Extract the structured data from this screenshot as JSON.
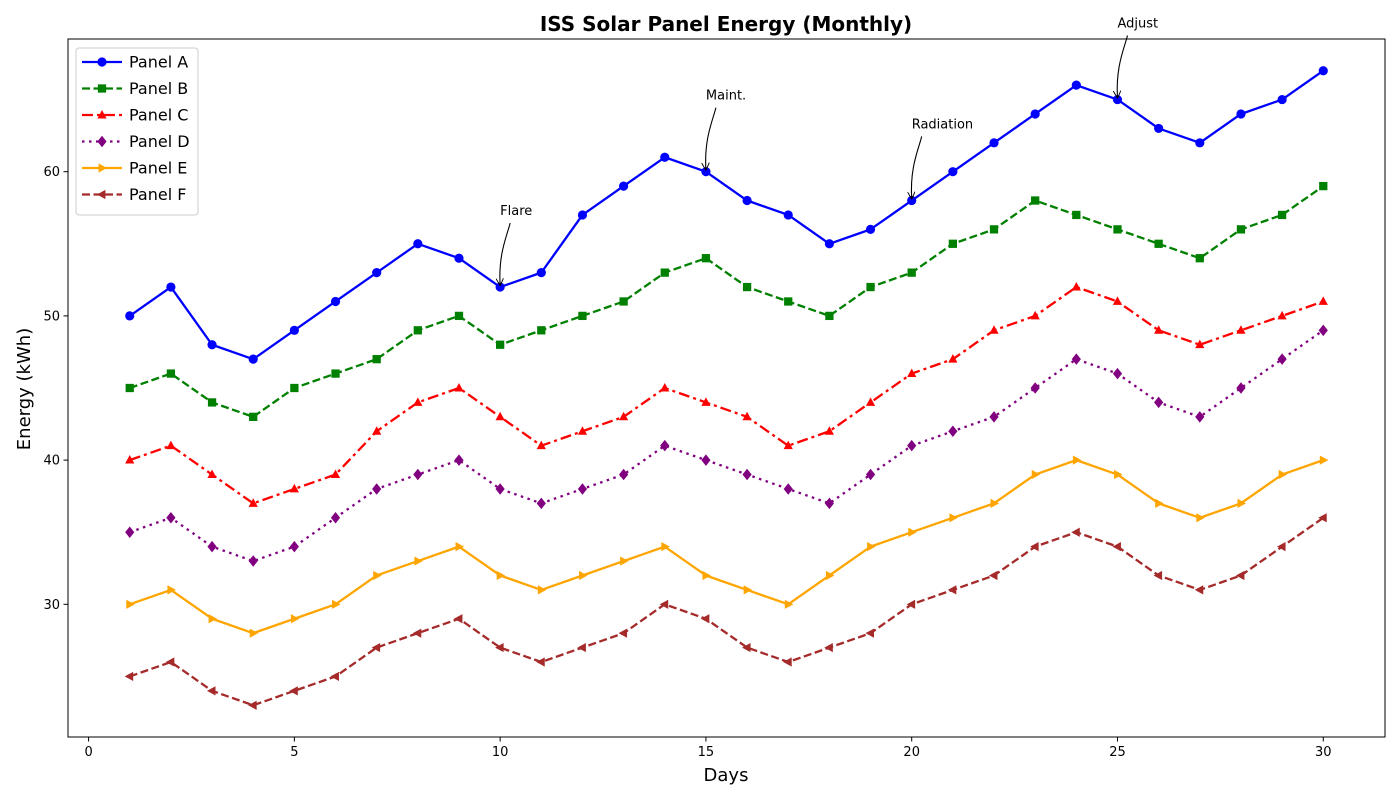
{
  "chart_data": {
    "type": "line",
    "title": "ISS Solar Panel Energy (Monthly)",
    "xlabel": "Days",
    "ylabel": "Energy (kWh)",
    "xlim": [
      -0.5,
      31.5
    ],
    "ylim": [
      20.8,
      69.2
    ],
    "xticks": [
      0,
      5,
      10,
      15,
      20,
      25,
      30
    ],
    "yticks": [
      30,
      40,
      50,
      60
    ],
    "grid": false,
    "legend_position": "upper-left",
    "x": [
      1,
      2,
      3,
      4,
      5,
      6,
      7,
      8,
      9,
      10,
      11,
      12,
      13,
      14,
      15,
      16,
      17,
      18,
      19,
      20,
      21,
      22,
      23,
      24,
      25,
      26,
      27,
      28,
      29,
      30
    ],
    "series": [
      {
        "name": "Panel A",
        "color": "#0000ff",
        "dash": "solid",
        "marker": "circle",
        "values": [
          50,
          52,
          48,
          47,
          49,
          51,
          53,
          55,
          54,
          52,
          53,
          57,
          59,
          61,
          60,
          58,
          57,
          55,
          56,
          58,
          60,
          62,
          64,
          66,
          65,
          63,
          62,
          64,
          65,
          67
        ]
      },
      {
        "name": "Panel B",
        "color": "#008000",
        "dash": "dashed",
        "marker": "square",
        "values": [
          45,
          46,
          44,
          43,
          45,
          46,
          47,
          49,
          50,
          48,
          49,
          50,
          51,
          53,
          54,
          52,
          51,
          50,
          52,
          53,
          55,
          56,
          58,
          57,
          56,
          55,
          54,
          56,
          57,
          59
        ]
      },
      {
        "name": "Panel C",
        "color": "#ff0000",
        "dash": "dashdot",
        "marker": "triangle-up",
        "values": [
          40,
          41,
          39,
          37,
          38,
          39,
          42,
          44,
          45,
          43,
          41,
          42,
          43,
          45,
          44,
          43,
          41,
          42,
          44,
          46,
          47,
          49,
          50,
          52,
          51,
          49,
          48,
          49,
          50,
          51
        ]
      },
      {
        "name": "Panel D",
        "color": "#800080",
        "dash": "dotted",
        "marker": "diamond",
        "values": [
          35,
          36,
          34,
          33,
          34,
          36,
          38,
          39,
          40,
          38,
          37,
          38,
          39,
          41,
          40,
          39,
          38,
          37,
          39,
          41,
          42,
          43,
          45,
          47,
          46,
          44,
          43,
          45,
          47,
          49
        ]
      },
      {
        "name": "Panel E",
        "color": "#ffa500",
        "dash": "solid",
        "marker": "triangle-right",
        "values": [
          30,
          31,
          29,
          28,
          29,
          30,
          32,
          33,
          34,
          32,
          31,
          32,
          33,
          34,
          32,
          31,
          30,
          32,
          34,
          35,
          36,
          37,
          39,
          40,
          39,
          37,
          36,
          37,
          39,
          40
        ]
      },
      {
        "name": "Panel F",
        "color": "#a52a2a",
        "dash": "dashed",
        "marker": "triangle-left",
        "values": [
          25,
          26,
          24,
          23,
          24,
          25,
          27,
          28,
          29,
          27,
          26,
          27,
          28,
          30,
          29,
          27,
          26,
          27,
          28,
          30,
          31,
          32,
          34,
          35,
          34,
          32,
          31,
          32,
          34,
          36
        ]
      }
    ],
    "annotations": [
      {
        "text": "Flare",
        "x": 10,
        "y": 52,
        "text_x": 10,
        "text_y": 57
      },
      {
        "text": "Maint.",
        "x": 15,
        "y": 60,
        "text_x": 15,
        "text_y": 65
      },
      {
        "text": "Radiation",
        "x": 20,
        "y": 58,
        "text_x": 20,
        "text_y": 63
      },
      {
        "text": "Adjust",
        "x": 25,
        "y": 65,
        "text_x": 25,
        "text_y": 70
      }
    ]
  }
}
